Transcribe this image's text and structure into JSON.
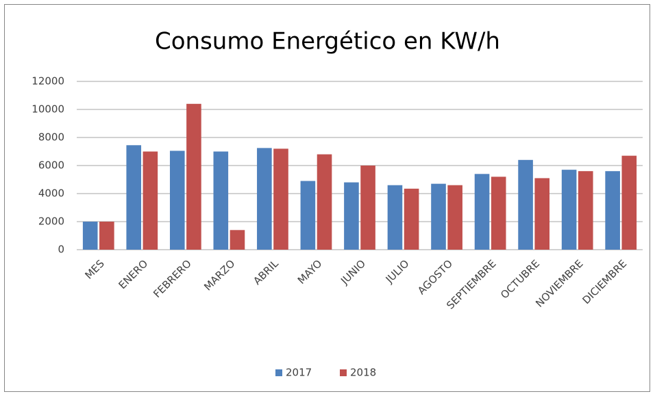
{
  "chart_data": {
    "type": "bar",
    "title": "Consumo Energético en KW/h",
    "categories": [
      "MES",
      "ENERO",
      "FEBRERO",
      "MARZO",
      "ABRIL",
      "MAYO",
      "JUNIO",
      "JULIO",
      "AGOSTO",
      "SEPTIEMBRE",
      "OCTUBRE",
      "NOVIEMBRE",
      "DICIEMBRE"
    ],
    "series": [
      {
        "name": "2017",
        "color": "#4f81bd",
        "values": [
          2000,
          7450,
          7050,
          7000,
          7250,
          4900,
          4800,
          4600,
          4700,
          5400,
          6400,
          5700,
          5600
        ]
      },
      {
        "name": "2018",
        "color": "#c0504d",
        "values": [
          2000,
          7000,
          10400,
          1400,
          7200,
          6800,
          6000,
          4350,
          4600,
          5200,
          5100,
          5600,
          6700
        ]
      }
    ],
    "ylim": [
      0,
      12000
    ],
    "yticks": [
      0,
      2000,
      4000,
      6000,
      8000,
      10000,
      12000
    ],
    "grid": true,
    "legend": "bottom"
  }
}
